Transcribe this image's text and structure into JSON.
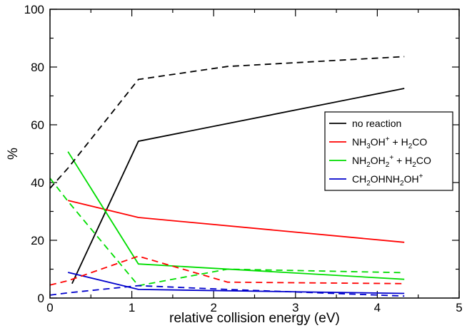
{
  "chart_data": {
    "type": "line",
    "xlabel": "relative collision energy (eV)",
    "ylabel": "%",
    "xlim": [
      0,
      5
    ],
    "ylim": [
      0,
      100
    ],
    "x_ticks": [
      0,
      1,
      2,
      3,
      4,
      5
    ],
    "y_ticks": [
      0,
      20,
      40,
      60,
      80,
      100
    ],
    "grid": false,
    "legend_position": "right",
    "legend": [
      {
        "color": "#000000",
        "parts": [
          {
            "t": "no reaction",
            "s": ""
          }
        ]
      },
      {
        "color": "#ff0000",
        "parts": [
          {
            "t": "NH",
            "s": ""
          },
          {
            "t": "3",
            "s": "sub"
          },
          {
            "t": "OH",
            "s": ""
          },
          {
            "t": "+",
            "s": "sup"
          },
          {
            "t": " + H",
            "s": ""
          },
          {
            "t": "2",
            "s": "sub"
          },
          {
            "t": "CO",
            "s": ""
          }
        ]
      },
      {
        "color": "#00dd00",
        "parts": [
          {
            "t": "NH",
            "s": ""
          },
          {
            "t": "2",
            "s": "sub"
          },
          {
            "t": "OH",
            "s": ""
          },
          {
            "t": "2",
            "s": "sub"
          },
          {
            "t": "+",
            "s": "sup"
          },
          {
            "t": " + H",
            "s": ""
          },
          {
            "t": "2",
            "s": "sub"
          },
          {
            "t": "CO",
            "s": ""
          }
        ]
      },
      {
        "color": "#0000cc",
        "parts": [
          {
            "t": "CH",
            "s": ""
          },
          {
            "t": "2",
            "s": "sub"
          },
          {
            "t": "OHNH",
            "s": ""
          },
          {
            "t": "2",
            "s": "sub"
          },
          {
            "t": "OH",
            "s": ""
          },
          {
            "t": "+",
            "s": "sup"
          }
        ]
      }
    ],
    "series": [
      {
        "color": "#000000",
        "dash": false,
        "x": [
          0.27,
          1.08,
          4.33
        ],
        "y": [
          5.0,
          54.3,
          72.6
        ]
      },
      {
        "color": "#ff0000",
        "dash": false,
        "x": [
          0.22,
          1.08,
          4.33
        ],
        "y": [
          33.8,
          27.9,
          19.3
        ]
      },
      {
        "color": "#00dd00",
        "dash": false,
        "x": [
          0.22,
          1.08,
          4.33
        ],
        "y": [
          50.7,
          11.8,
          6.5
        ]
      },
      {
        "color": "#0000cc",
        "dash": false,
        "x": [
          0.22,
          1.08,
          4.33
        ],
        "y": [
          8.9,
          3.0,
          1.6
        ]
      },
      {
        "color": "#000000",
        "dash": true,
        "x": [
          0.0,
          0.22,
          1.08,
          2.17,
          4.33
        ],
        "y": [
          38.0,
          45.0,
          75.7,
          80.2,
          83.6
        ]
      },
      {
        "color": "#ff0000",
        "dash": true,
        "x": [
          0.0,
          0.22,
          1.08,
          2.17,
          4.33
        ],
        "y": [
          4.5,
          6.0,
          14.5,
          5.5,
          5.0
        ]
      },
      {
        "color": "#00dd00",
        "dash": true,
        "x": [
          0.0,
          0.22,
          1.08,
          2.17,
          4.33
        ],
        "y": [
          41.5,
          33.5,
          4.3,
          10.0,
          8.8
        ]
      },
      {
        "color": "#0000cc",
        "dash": true,
        "x": [
          0.0,
          0.22,
          1.08,
          2.17,
          4.33
        ],
        "y": [
          1.0,
          1.8,
          4.3,
          3.0,
          0.7
        ]
      }
    ]
  }
}
